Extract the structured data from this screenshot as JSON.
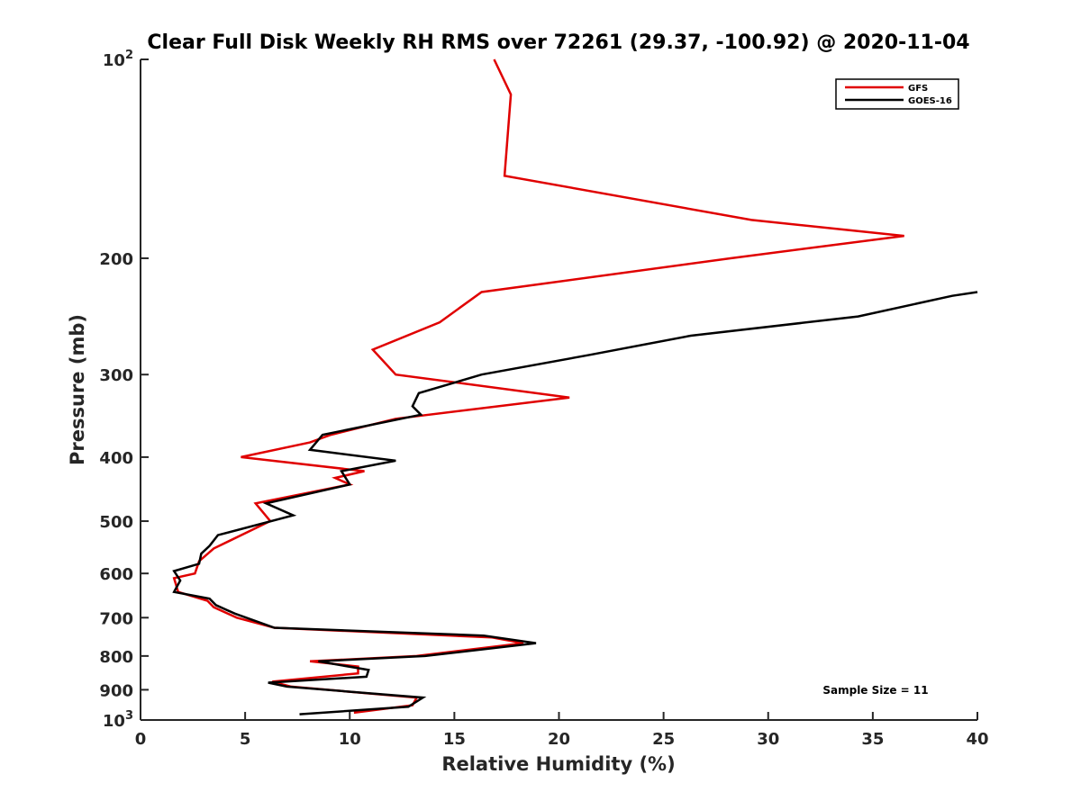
{
  "chart_data": {
    "type": "line",
    "title": "Clear Full Disk Weekly RH RMS over 72261 (29.37, -100.92) @ 2020-11-04",
    "xlabel": "Relative Humidity (%)",
    "ylabel": "Pressure (mb)",
    "xlim": [
      0,
      40
    ],
    "ylim": [
      100,
      1000
    ],
    "yscale": "log",
    "y_reversed": true,
    "x_ticks": [
      "0",
      "5",
      "10",
      "15",
      "20",
      "25",
      "30",
      "35",
      "40"
    ],
    "y_ticks": [
      {
        "value": 100,
        "base": "10",
        "exp": "2"
      },
      {
        "value": 200,
        "label": "200"
      },
      {
        "value": 300,
        "label": "300"
      },
      {
        "value": 400,
        "label": "400"
      },
      {
        "value": 500,
        "label": "500"
      },
      {
        "value": 600,
        "label": "600"
      },
      {
        "value": 700,
        "label": "700"
      },
      {
        "value": 800,
        "label": "800"
      },
      {
        "value": 900,
        "label": "900"
      },
      {
        "value": 1000,
        "base": "10",
        "exp": "3"
      }
    ],
    "legend_position": "top-right",
    "annotation": "Sample Size = 11",
    "series": [
      {
        "name": "GFS",
        "color": "#e00000",
        "points": [
          [
            16.9,
            100
          ],
          [
            17.7,
            113
          ],
          [
            17.4,
            150
          ],
          [
            29.2,
            175
          ],
          [
            36.5,
            185
          ],
          [
            28.2,
            200
          ],
          [
            16.3,
            225
          ],
          [
            14.3,
            250
          ],
          [
            11.1,
            275
          ],
          [
            12.2,
            300
          ],
          [
            20.5,
            325
          ],
          [
            12.2,
            350
          ],
          [
            9.1,
            370
          ],
          [
            8.1,
            380
          ],
          [
            4.8,
            400
          ],
          [
            10.7,
            420
          ],
          [
            9.3,
            430
          ],
          [
            10.0,
            440
          ],
          [
            5.5,
            470
          ],
          [
            6.2,
            500
          ],
          [
            3.5,
            550
          ],
          [
            2.8,
            575
          ],
          [
            2.6,
            600
          ],
          [
            1.6,
            610
          ],
          [
            1.8,
            640
          ],
          [
            3.2,
            660
          ],
          [
            3.5,
            675
          ],
          [
            4.6,
            700
          ],
          [
            6.4,
            725
          ],
          [
            16.8,
            750
          ],
          [
            18.3,
            765
          ],
          [
            13.2,
            800
          ],
          [
            8.1,
            815
          ],
          [
            10.4,
            830
          ],
          [
            10.4,
            850
          ],
          [
            6.3,
            875
          ],
          [
            7.2,
            890
          ],
          [
            13.2,
            925
          ],
          [
            13.0,
            950
          ],
          [
            10.2,
            975
          ]
        ]
      },
      {
        "name": "GOES-16",
        "color": "#000000",
        "points": [
          [
            40.0,
            225
          ],
          [
            38.8,
            228
          ],
          [
            34.3,
            245
          ],
          [
            26.3,
            262
          ],
          [
            21.5,
            280
          ],
          [
            16.3,
            300
          ],
          [
            13.3,
            320
          ],
          [
            13.0,
            335
          ],
          [
            13.4,
            345
          ],
          [
            8.7,
            370
          ],
          [
            8.1,
            390
          ],
          [
            12.2,
            405
          ],
          [
            9.6,
            420
          ],
          [
            10.0,
            440
          ],
          [
            6.0,
            470
          ],
          [
            7.3,
            490
          ],
          [
            3.7,
            525
          ],
          [
            3.3,
            545
          ],
          [
            2.9,
            560
          ],
          [
            2.8,
            580
          ],
          [
            1.6,
            595
          ],
          [
            1.9,
            615
          ],
          [
            1.6,
            640
          ],
          [
            3.3,
            655
          ],
          [
            3.6,
            670
          ],
          [
            4.5,
            690
          ],
          [
            6.4,
            725
          ],
          [
            16.4,
            745
          ],
          [
            18.9,
            765
          ],
          [
            13.6,
            800
          ],
          [
            8.5,
            815
          ],
          [
            10.9,
            840
          ],
          [
            10.8,
            860
          ],
          [
            6.1,
            878
          ],
          [
            7.0,
            890
          ],
          [
            13.5,
            925
          ],
          [
            12.8,
            955
          ],
          [
            7.6,
            980
          ]
        ]
      }
    ]
  }
}
